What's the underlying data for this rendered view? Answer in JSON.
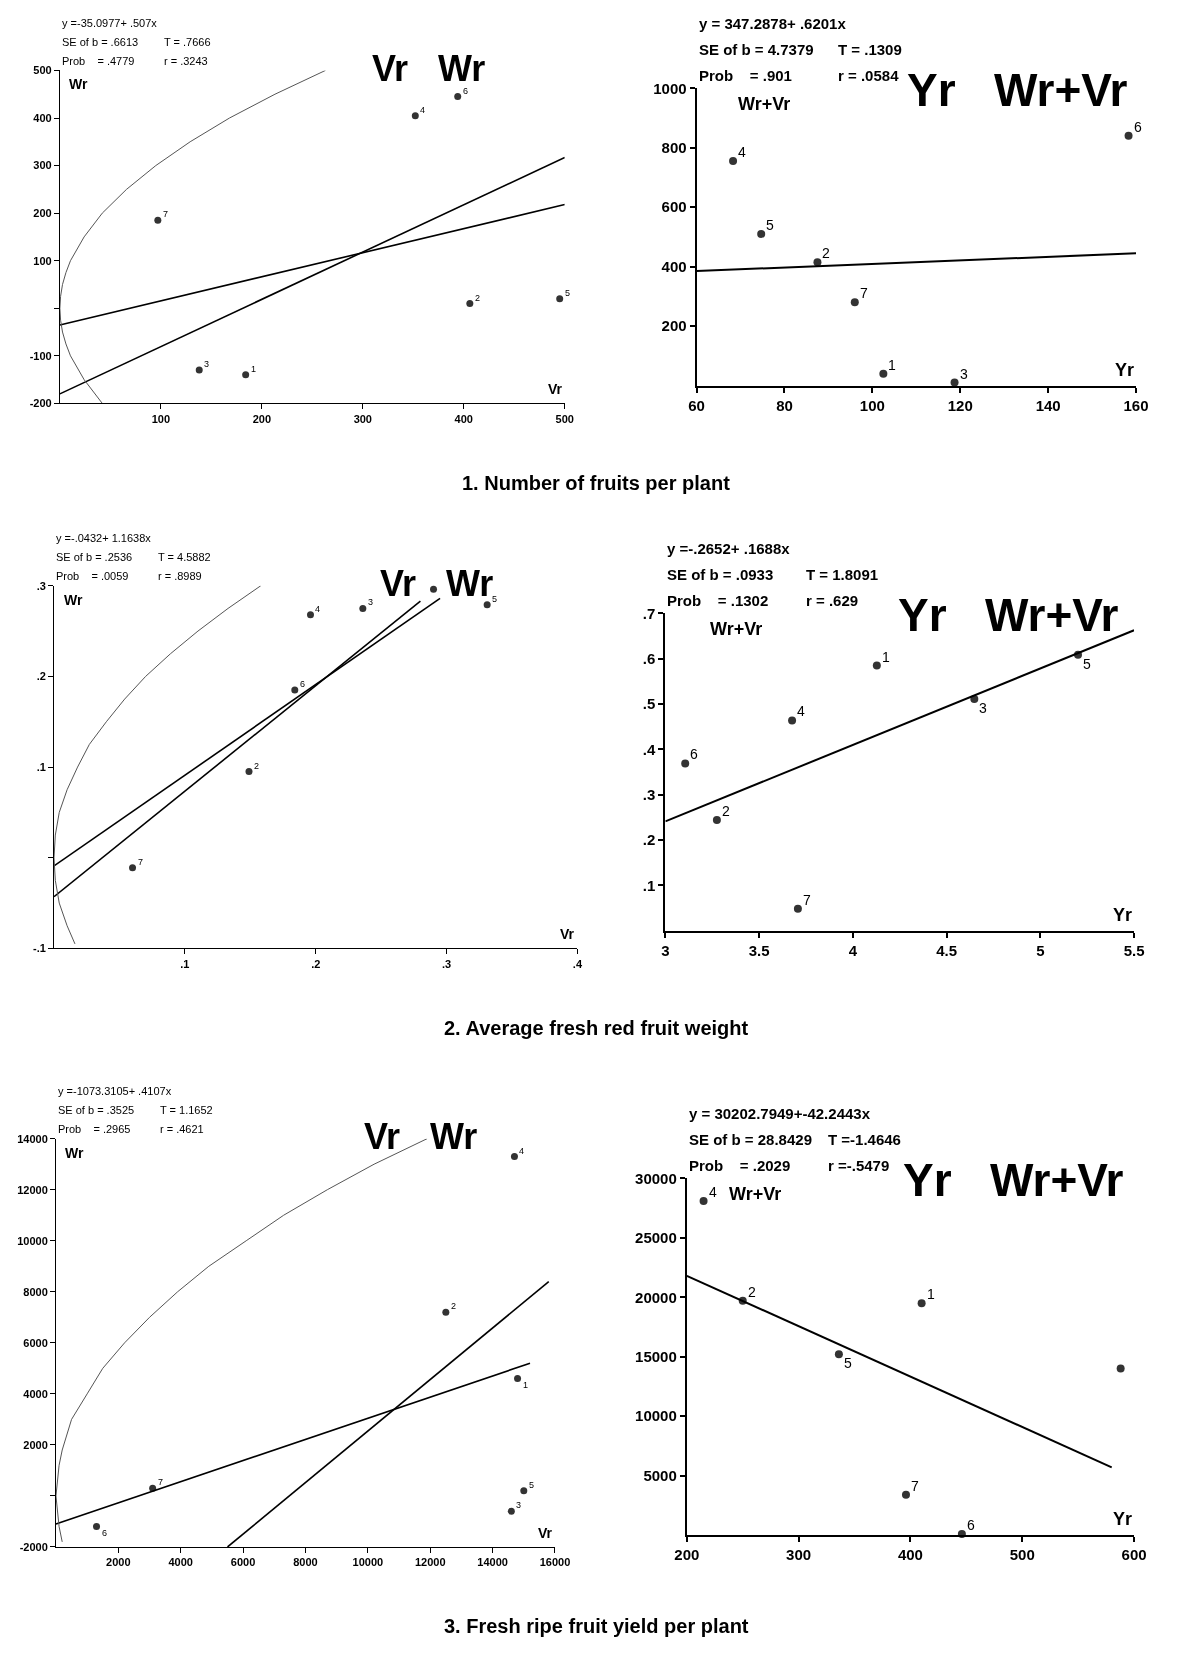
{
  "chart_data": [
    {
      "type": "scatter",
      "title": "Vr   Wr",
      "xlabel": "Vr",
      "ylabel": "Wr",
      "xlim": [
        0,
        500
      ],
      "ylim": [
        -200,
        500
      ],
      "xticks": [
        100,
        200,
        300,
        400,
        500
      ],
      "yticks": [
        -200,
        -100,
        {
          "value": 0,
          "label": null
        },
        100,
        200,
        300,
        400,
        500
      ],
      "series": [
        {
          "type": "scatter",
          "marker": "circle",
          "color": "#333333",
          "x": [
            184,
            406,
            138,
            352,
            495,
            394,
            97
          ],
          "values": [
            -140,
            10,
            -130,
            405,
            20,
            445,
            185
          ]
        },
        {
          "type": "line",
          "marker": "none",
          "color": "#000000",
          "x": [
            0,
            500
          ],
          "values": [
            -35,
            218
          ]
        },
        {
          "type": "line",
          "marker": "none",
          "color": "#000000",
          "x": [
            0,
            500
          ],
          "values": [
            -180,
            317
          ]
        },
        {
          "type": "line",
          "marker": "none",
          "color": "#555555",
          "x": [
            42,
            24,
            10.5,
            6,
            2.6,
            0.7,
            0,
            0.7,
            2.6,
            6,
            10.5,
            24,
            42,
            66,
            95,
            129,
            168,
            213,
            263
          ],
          "values": [
            -200,
            -150,
            -100,
            -75,
            -50,
            -25,
            0,
            25,
            50,
            75,
            100,
            150,
            200,
            250,
            300,
            350,
            400,
            450,
            500
          ]
        }
      ],
      "annotations": [
        "y =-35.0977+ .507x",
        "SE of b = .6613",
        "T = .7666",
        "Prob    = .4779",
        "r = .3243",
        "1. Number of fruits per plant",
        {
          "text": "1",
          "x": 184,
          "y": -140
        },
        {
          "text": "2",
          "x": 406,
          "y": 10
        },
        {
          "text": "3",
          "x": 138,
          "y": -130
        },
        {
          "text": "4",
          "x": 352,
          "y": 405
        },
        {
          "text": "5",
          "x": 495,
          "y": 20
        },
        {
          "text": "6",
          "x": 394,
          "y": 445
        },
        {
          "text": "7",
          "x": 97,
          "y": 185
        }
      ]
    },
    {
      "type": "scatter",
      "title": "Yr   Wr+Vr",
      "xlabel": "Yr",
      "ylabel": "Wr+Vr",
      "xlim": [
        60,
        160
      ],
      "ylim": [
        0,
        1000
      ],
      "xticks": [
        60,
        80,
        100,
        120,
        140,
        160
      ],
      "yticks": [
        200,
        400,
        600,
        800,
        1000
      ],
      "series": [
        {
          "type": "scatter",
          "marker": "circle",
          "color": "#333333",
          "x": [
            102.5,
            87.5,
            118.7,
            68.3,
            74.7,
            158.3,
            96
          ],
          "values": [
            40,
            415,
            10,
            755,
            510,
            840,
            280
          ]
        },
        {
          "type": "line",
          "marker": "none",
          "color": "#000000",
          "x": [
            60,
            160
          ],
          "values": [
            385,
            445
          ]
        }
      ],
      "annotations": [
        "y = 347.2878+ .6201x",
        "SE of b = 4.7379",
        "T = .1309",
        "Prob    = .901",
        "r = .0584",
        {
          "text": "1",
          "x": 102.5,
          "y": 40
        },
        {
          "text": "2",
          "x": 87.5,
          "y": 415
        },
        {
          "text": "3",
          "x": 118.7,
          "y": 10
        },
        {
          "text": "4",
          "x": 68.3,
          "y": 755
        },
        {
          "text": "5",
          "x": 74.7,
          "y": 510
        },
        {
          "text": "6",
          "x": 158.3,
          "y": 840
        },
        {
          "text": "7",
          "x": 96,
          "y": 280
        }
      ]
    },
    {
      "type": "scatter",
      "title": "Vr   Wr",
      "xlabel": "Vr",
      "ylabel": "Wr",
      "xlim": [
        0,
        0.4
      ],
      "ylim": [
        -0.1,
        0.3
      ],
      "xticks": [
        {
          "value": 0.1,
          "label": ".1"
        },
        {
          "value": 0.2,
          "label": ".2"
        },
        {
          "value": 0.3,
          "label": ".3"
        },
        {
          "value": 0.4,
          "label": ".4"
        }
      ],
      "yticks": [
        {
          "value": -0.1,
          "label": "-.1"
        },
        {
          "value": 0,
          "label": null
        },
        {
          "value": 0.1,
          "label": ".1"
        },
        {
          "value": 0.2,
          "label": ".2"
        },
        {
          "value": 0.3,
          "label": ".3"
        }
      ],
      "series": [
        {
          "type": "scatter",
          "marker": "circle",
          "color": "#333333",
          "x": [
            0.29,
            0.149,
            0.236,
            0.196,
            0.331,
            0.184,
            0.06
          ],
          "values": [
            0.296,
            0.095,
            0.275,
            0.268,
            0.279,
            0.185,
            -0.011
          ]
        },
        {
          "type": "line",
          "marker": "none",
          "color": "#000000",
          "x": [
            0,
            0.28
          ],
          "values": [
            -0.043,
            0.283
          ]
        },
        {
          "type": "line",
          "marker": "none",
          "color": "#000000",
          "x": [
            0,
            0.295
          ],
          "values": [
            -0.009,
            0.286
          ]
        },
        {
          "type": "line",
          "marker": "none",
          "color": "#555555",
          "x": [
            0.016,
            0.01,
            0.004,
            0.001,
            0,
            0.001,
            0.004,
            0.01,
            0.018,
            0.027,
            0.04,
            0.054,
            0.07,
            0.089,
            0.11,
            0.133,
            0.158
          ],
          "values": [
            -0.095,
            -0.075,
            -0.05,
            -0.025,
            0,
            0.025,
            0.05,
            0.075,
            0.1,
            0.125,
            0.15,
            0.175,
            0.2,
            0.225,
            0.25,
            0.275,
            0.3
          ]
        }
      ],
      "annotations": [
        "y =-.0432+ 1.1638x",
        "SE of b = .2536",
        "T = 4.5882",
        "Prob    = .0059",
        "r = .8989",
        "2. Average fresh red fruit weight",
        {
          "text": "2",
          "x": 0.149,
          "y": 0.095
        },
        {
          "text": "3",
          "x": 0.236,
          "y": 0.275
        },
        {
          "text": "4",
          "x": 0.196,
          "y": 0.268
        },
        {
          "text": "5",
          "x": 0.331,
          "y": 0.279
        },
        {
          "text": "6",
          "x": 0.184,
          "y": 0.185
        },
        {
          "text": "7",
          "x": 0.06,
          "y": -0.011
        }
      ]
    },
    {
      "type": "scatter",
      "title": "Yr   Wr+Vr",
      "xlabel": "Yr",
      "ylabel": "Wr+Vr",
      "xlim": [
        3,
        5.5
      ],
      "ylim": [
        0,
        0.7
      ],
      "xticks": [
        3,
        3.5,
        4,
        4.5,
        5,
        5.5
      ],
      "yticks": [
        {
          "value": 0.1,
          "label": ".1"
        },
        {
          "value": 0.2,
          "label": ".2"
        },
        {
          "value": 0.3,
          "label": ".3"
        },
        {
          "value": 0.4,
          "label": ".4"
        },
        {
          "value": 0.5,
          "label": ".5"
        },
        {
          "value": 0.6,
          "label": ".6"
        },
        {
          "value": 0.7,
          "label": ".7"
        }
      ],
      "series": [
        {
          "type": "scatter",
          "marker": "circle",
          "color": "#333333",
          "x": [
            4.128,
            3.275,
            4.648,
            3.676,
            5.201,
            3.106,
            3.707
          ],
          "values": [
            0.585,
            0.244,
            0.511,
            0.464,
            0.609,
            0.369,
            0.048
          ]
        },
        {
          "type": "line",
          "marker": "none",
          "color": "#000000",
          "x": [
            3,
            5.5
          ],
          "values": [
            0.241,
            0.663
          ]
        }
      ],
      "annotations": [
        "y =-.2652+ .1688x",
        "SE of b = .0933",
        "T = 1.8091",
        "Prob    = .1302",
        "r = .629",
        {
          "text": "1",
          "x": 4.128,
          "y": 0.585
        },
        {
          "text": "2",
          "x": 3.275,
          "y": 0.244
        },
        {
          "text": "3",
          "x": 4.648,
          "y": 0.511
        },
        {
          "text": "4",
          "x": 3.676,
          "y": 0.464
        },
        {
          "text": "5",
          "x": 5.201,
          "y": 0.609
        },
        {
          "text": "6",
          "x": 3.106,
          "y": 0.369
        },
        {
          "text": "7",
          "x": 3.707,
          "y": 0.048
        }
      ]
    },
    {
      "type": "scatter",
      "title": "Vr   Wr",
      "xlabel": "Vr",
      "ylabel": "Wr",
      "xlim": [
        0,
        16000
      ],
      "ylim": [
        -2000,
        14000
      ],
      "xticks": [
        2000,
        4000,
        6000,
        8000,
        10000,
        12000,
        14000,
        16000
      ],
      "yticks": [
        -2000,
        {
          "value": 0,
          "label": null
        },
        2000,
        4000,
        6000,
        8000,
        10000,
        12000,
        14000
      ],
      "series": [
        {
          "type": "scatter",
          "marker": "circle",
          "color": "#333333",
          "x": [
            14800,
            12500,
            14600,
            14700,
            15000,
            1300,
            3100
          ],
          "values": [
            4600,
            7200,
            -600,
            13300,
            200,
            -1200,
            300
          ]
        },
        {
          "type": "line",
          "marker": "none",
          "color": "#000000",
          "x": [
            0,
            15200
          ],
          "values": [
            -1100,
            5200
          ]
        },
        {
          "type": "line",
          "marker": "none",
          "color": "#000000",
          "x": [
            5500,
            15800
          ],
          "values": [
            -2000,
            8400
          ]
        },
        {
          "type": "line",
          "marker": "none",
          "color": "#555555",
          "x": [
            200,
            100,
            0,
            100,
            200,
            500,
            1000,
            1500,
            2200,
            3000,
            3900,
            4900,
            6100,
            7300,
            8700,
            10200,
            11900
          ],
          "values": [
            -1800,
            -1200,
            0,
            1200,
            1800,
            3000,
            4000,
            5000,
            6000,
            7000,
            8000,
            9000,
            10000,
            11000,
            12000,
            13000,
            14000
          ]
        }
      ],
      "annotations": [
        "y =-1073.3105+ .4107x",
        "SE of b = .3525",
        "T = 1.1652",
        "Prob    = .2965",
        "r = .4621",
        "3. Fresh ripe fruit yield per plant",
        {
          "text": "1",
          "x": 14800,
          "y": 4600
        },
        {
          "text": "2",
          "x": 12500,
          "y": 7200
        },
        {
          "text": "3",
          "x": 14600,
          "y": -600
        },
        {
          "text": "4",
          "x": 14700,
          "y": 13300
        },
        {
          "text": "5",
          "x": 15000,
          "y": 200
        },
        {
          "text": "6",
          "x": 1300,
          "y": -1200
        },
        {
          "text": "7",
          "x": 3100,
          "y": 300
        }
      ]
    },
    {
      "type": "scatter",
      "title": "Yr   Wr+Vr",
      "xlabel": "Yr",
      "ylabel": "Wr+Vr",
      "xlim": [
        200,
        600
      ],
      "ylim": [
        0,
        30000
      ],
      "xticks": [
        200,
        300,
        400,
        500,
        600
      ],
      "yticks": [
        5000,
        10000,
        15000,
        20000,
        25000,
        30000
      ],
      "series": [
        {
          "type": "scatter",
          "marker": "circle",
          "color": "#333333",
          "x": [
            410,
            250,
            588,
            215,
            336,
            446,
            396
          ],
          "values": [
            19500,
            19700,
            14000,
            28100,
            15200,
            100,
            3400
          ]
        },
        {
          "type": "line",
          "marker": "none",
          "color": "#000000",
          "x": [
            200,
            580
          ],
          "values": [
            21800,
            5700
          ]
        }
      ],
      "annotations": [
        "y = 30202.7949+-42.2443x",
        "SE of b = 28.8429",
        "T =-1.4646",
        "Prob    = .2029",
        "r =-.5479",
        {
          "text": "1",
          "x": 410,
          "y": 19500
        },
        {
          "text": "2",
          "x": 250,
          "y": 19700
        },
        {
          "text": "4",
          "x": 215,
          "y": 28100
        },
        {
          "text": "5",
          "x": 336,
          "y": 15200
        },
        {
          "text": "6",
          "x": 446,
          "y": 100
        },
        {
          "text": "7",
          "x": 396,
          "y": 3400
        }
      ]
    }
  ]
}
